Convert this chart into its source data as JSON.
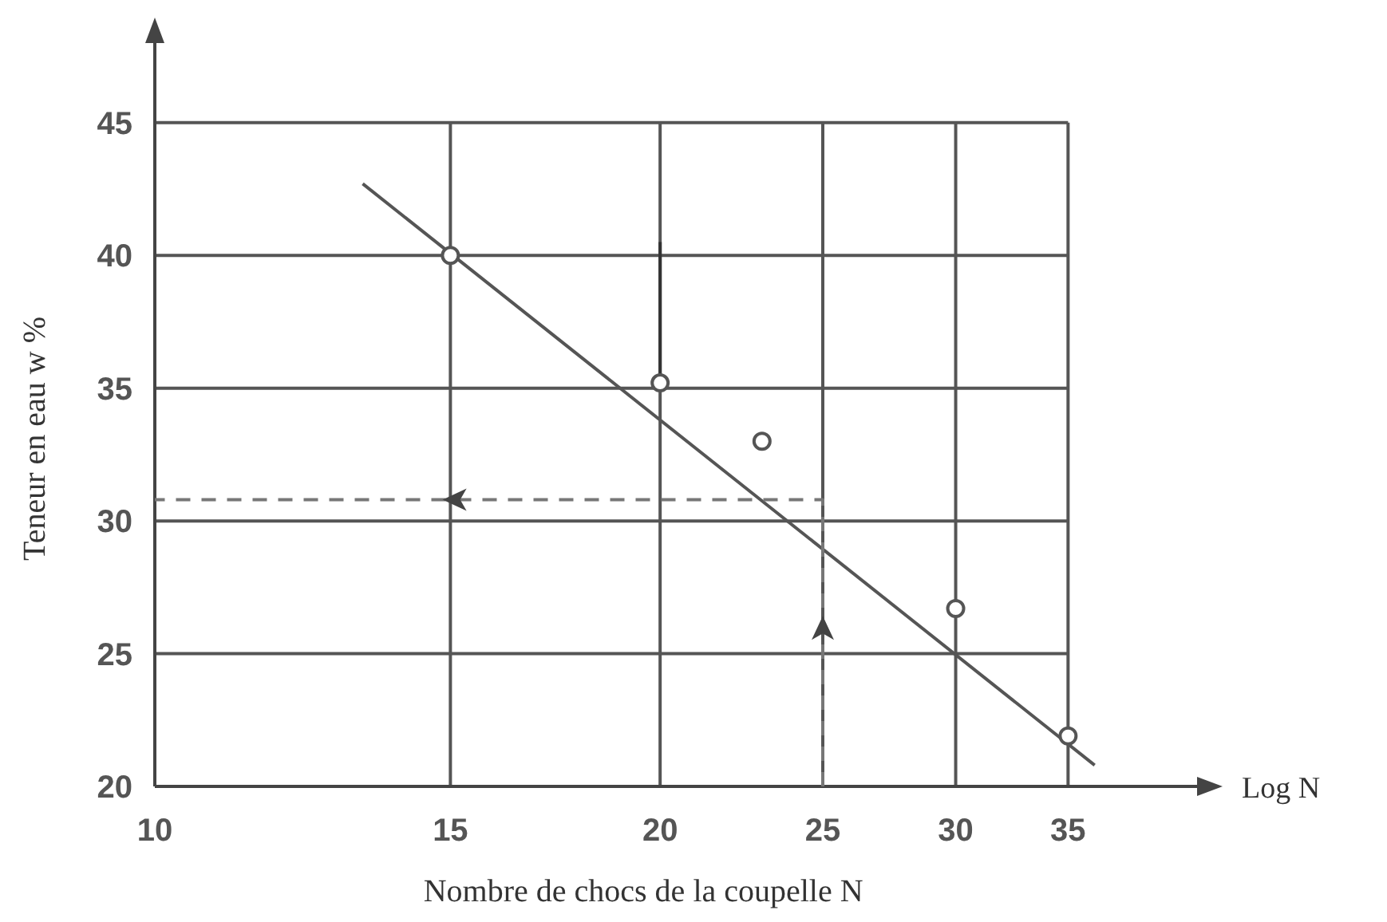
{
  "chart_data": {
    "type": "scatter",
    "xlabel": "Nombre de chocs de la coupelle N",
    "ylabel": "Teneur en eau w %",
    "log": "x",
    "xlim": [
      10,
      42.7
    ],
    "ylim": [
      20,
      48.6
    ],
    "xticks": [
      10,
      15,
      20,
      25,
      30,
      35
    ],
    "yticks": [
      20,
      25,
      30,
      35,
      40,
      45
    ],
    "grid": true,
    "marker": "circle",
    "annotations": [
      "Log N"
    ],
    "series": [
      {
        "type": "line",
        "color": "#555555",
        "marker": "none",
        "x": [
          13.3,
          36.3
        ],
        "values": [
          42.7,
          20.8
        ]
      },
      {
        "type": "line",
        "color": "#333333",
        "marker": "none",
        "x": [
          20,
          20
        ],
        "values": [
          35.2,
          40.5
        ]
      },
      {
        "type": "line",
        "color": "#777777",
        "marker": "none",
        "line_style": "dashed",
        "x": [
          25,
          25,
          10
        ],
        "values": [
          20,
          30.8,
          30.8
        ]
      },
      {
        "color": "#555555",
        "x": [
          15,
          20,
          23,
          30,
          35
        ],
        "values": [
          40,
          35.2,
          33,
          26.7,
          21.9
        ]
      }
    ]
  }
}
